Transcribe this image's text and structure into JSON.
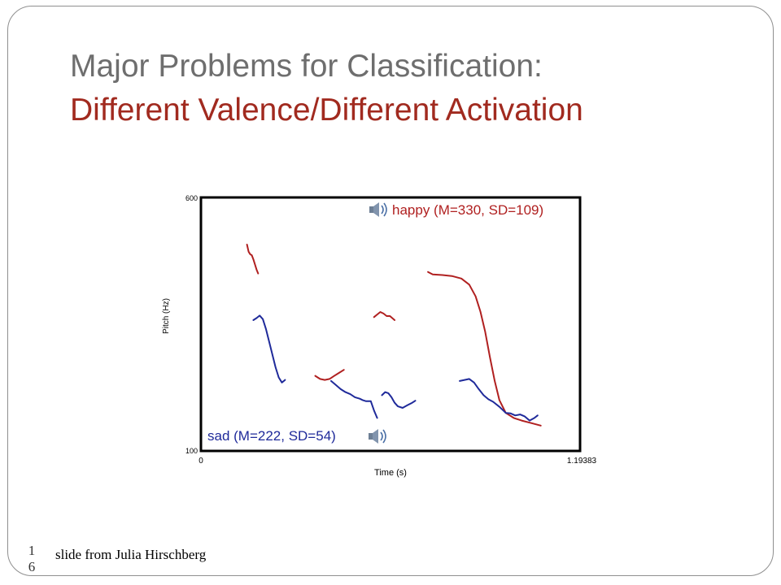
{
  "slide": {
    "title_line1": "Major Problems for Classification:",
    "title_line2": "Different Valence/Different Activation",
    "footer": "slide from Julia Hirschberg",
    "slide_number_line1": "1",
    "slide_number_line2": "6"
  },
  "colors": {
    "title_main": "#6e6e6e",
    "title_accent": "#a12a1f",
    "happy": "#b02020",
    "sad": "#1f2a9a"
  },
  "icons": [
    "speaker-icon",
    "speaker-icon"
  ],
  "chart_data": {
    "type": "line",
    "xlabel": "Time (s)",
    "ylabel": "Pitch (Hz)",
    "xlim": [
      0,
      1.19383
    ],
    "ylim": [
      100,
      600
    ],
    "x_tick_labels": [
      "0",
      "1.19383"
    ],
    "y_tick_labels": [
      "100",
      "600"
    ],
    "legend": [
      {
        "name": "happy (M=330, SD=109)",
        "position": "top-right",
        "has_audio_icon": true
      },
      {
        "name": "sad (M=222, SD=54)",
        "position": "bottom-left",
        "has_audio_icon": true
      }
    ],
    "grid": false,
    "series": [
      {
        "name": "happy (M=330, SD=109)",
        "segments": [
          [
            [
              0.145,
              507
            ],
            [
              0.15,
              493
            ],
            [
              0.155,
              488
            ],
            [
              0.16,
              486
            ],
            [
              0.165,
              478
            ],
            [
              0.17,
              468
            ],
            [
              0.175,
              458
            ],
            [
              0.18,
              450
            ]
          ],
          [
            [
              0.36,
              248
            ],
            [
              0.375,
              242
            ],
            [
              0.39,
              240
            ],
            [
              0.405,
              242
            ],
            [
              0.42,
              248
            ],
            [
              0.435,
              254
            ],
            [
              0.45,
              260
            ]
          ],
          [
            [
              0.545,
              364
            ],
            [
              0.555,
              369
            ],
            [
              0.565,
              374
            ],
            [
              0.575,
              371
            ],
            [
              0.585,
              366
            ],
            [
              0.595,
              366
            ],
            [
              0.61,
              358
            ]
          ],
          [
            [
              0.715,
              453
            ],
            [
              0.73,
              448
            ],
            [
              0.76,
              447
            ],
            [
              0.79,
              445
            ],
            [
              0.82,
              440
            ],
            [
              0.845,
              428
            ],
            [
              0.865,
              405
            ],
            [
              0.88,
              375
            ],
            [
              0.895,
              335
            ],
            [
              0.91,
              285
            ],
            [
              0.925,
              238
            ],
            [
              0.94,
              200
            ],
            [
              0.96,
              175
            ],
            [
              0.985,
              165
            ],
            [
              1.01,
              160
            ],
            [
              1.04,
              155
            ],
            [
              1.07,
              150
            ]
          ]
        ]
      },
      {
        "name": "sad (M=222, SD=54)",
        "segments": [
          [
            [
              0.165,
              358
            ],
            [
              0.175,
              362
            ],
            [
              0.185,
              367
            ],
            [
              0.195,
              360
            ],
            [
              0.205,
              340
            ],
            [
              0.215,
              315
            ],
            [
              0.225,
              290
            ],
            [
              0.235,
              265
            ],
            [
              0.245,
              245
            ],
            [
              0.255,
              235
            ],
            [
              0.265,
              240
            ]
          ],
          [
            [
              0.41,
              238
            ],
            [
              0.425,
              230
            ],
            [
              0.44,
              222
            ],
            [
              0.455,
              216
            ],
            [
              0.47,
              212
            ],
            [
              0.485,
              206
            ],
            [
              0.5,
              203
            ],
            [
              0.51,
              200
            ],
            [
              0.52,
              198
            ],
            [
              0.535,
              198
            ],
            [
              0.545,
              180
            ],
            [
              0.555,
              165
            ]
          ],
          [
            [
              0.57,
              210
            ],
            [
              0.58,
              216
            ],
            [
              0.59,
              214
            ],
            [
              0.6,
              206
            ],
            [
              0.61,
              195
            ],
            [
              0.62,
              188
            ],
            [
              0.635,
              185
            ],
            [
              0.65,
              190
            ],
            [
              0.665,
              195
            ],
            [
              0.675,
              199
            ]
          ],
          [
            [
              0.815,
              238
            ],
            [
              0.83,
              240
            ],
            [
              0.845,
              242
            ],
            [
              0.86,
              235
            ],
            [
              0.875,
              222
            ],
            [
              0.89,
              210
            ],
            [
              0.905,
              202
            ],
            [
              0.92,
              197
            ],
            [
              0.94,
              187
            ],
            [
              0.96,
              175
            ],
            [
              0.975,
              174
            ],
            [
              0.99,
              170
            ],
            [
              1.005,
              172
            ],
            [
              1.02,
              168
            ],
            [
              1.035,
              160
            ],
            [
              1.05,
              165
            ],
            [
              1.06,
              170
            ]
          ]
        ]
      }
    ]
  }
}
